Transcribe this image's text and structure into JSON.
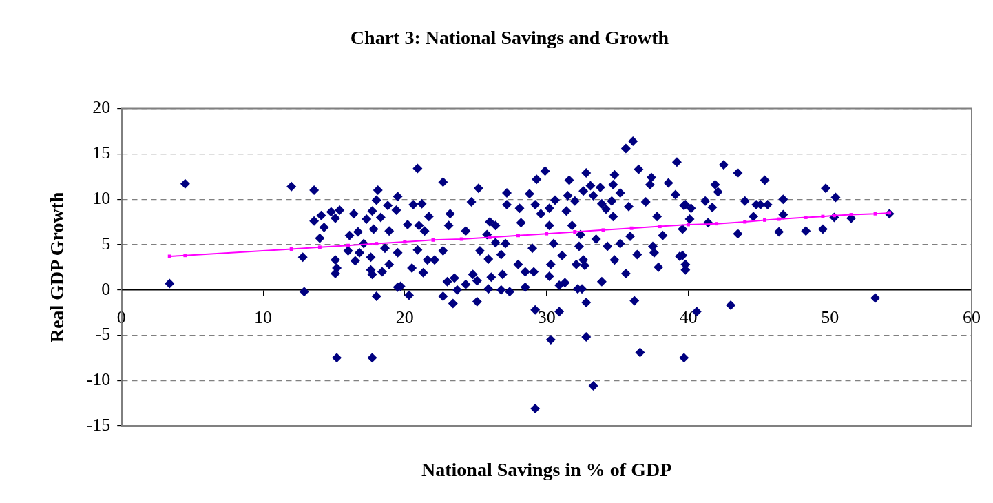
{
  "chart_data": {
    "type": "scatter",
    "title": "Chart 3: National Savings and Growth",
    "xlabel": "National Savings in % of GDP",
    "ylabel": "Real GDP Growth",
    "xlim": [
      0,
      60
    ],
    "xticks": [
      0,
      10,
      20,
      30,
      40,
      50,
      60
    ],
    "ylim": [
      -15,
      20
    ],
    "yticks": [
      -15,
      -10,
      -5,
      0,
      5,
      10,
      15,
      20
    ],
    "grid": "y",
    "legend": false,
    "series": [
      {
        "marker": "diamond",
        "color": "#000080",
        "x": [
          3.4,
          4.5,
          12.0,
          13.6,
          12.8,
          12.9,
          13.6,
          14.1,
          14.3,
          14.0,
          14.8,
          15.4,
          15.1,
          15.1,
          15.2,
          15.1,
          16.0,
          16.1,
          16.4,
          16.7,
          16.5,
          17.3,
          17.8,
          17.7,
          18.0,
          18.1,
          18.3,
          18.8,
          19.4,
          19.5,
          18.9,
          17.6,
          17.7,
          18.4,
          18.9,
          18.0,
          19.5,
          17.6,
          16.8,
          15.2,
          17.7,
          19.5,
          18.6,
          17.1,
          19.7,
          20.3,
          20.9,
          20.6,
          21.2,
          21.7,
          20.2,
          21.0,
          21.4,
          20.9,
          20.5,
          21.3,
          21.6,
          22.1,
          22.7,
          23.2,
          23.1,
          22.7,
          23.0,
          23.5,
          22.7,
          23.4,
          23.7,
          24.3,
          24.3,
          24.7,
          25.2,
          24.8,
          25.1,
          25.1,
          25.3,
          25.8,
          26.0,
          25.9,
          26.1,
          25.9,
          26.4,
          26.4,
          26.8,
          26.9,
          26.8,
          27.4,
          27.2,
          27.2,
          27.1,
          28.0,
          28.1,
          28.2,
          28.5,
          28.5,
          28.8,
          29.1,
          29.0,
          29.2,
          29.3,
          29.9,
          29.2,
          29.2,
          29.6,
          30.2,
          30.2,
          30.6,
          30.3,
          30.5,
          30.2,
          30.9,
          30.9,
          30.3,
          31.3,
          31.1,
          31.4,
          31.5,
          31.6,
          32.0,
          31.8,
          32.1,
          32.3,
          32.4,
          32.2,
          32.5,
          32.6,
          32.7,
          32.6,
          32.8,
          32.8,
          32.8,
          33.1,
          33.3,
          33.3,
          33.5,
          33.8,
          33.9,
          33.9,
          34.2,
          34.3,
          34.6,
          34.8,
          34.7,
          34.7,
          34.8,
          35.2,
          35.2,
          35.6,
          36.1,
          35.6,
          35.8,
          35.9,
          36.2,
          36.4,
          36.5,
          36.6,
          37.0,
          37.3,
          37.4,
          37.5,
          37.6,
          37.9,
          37.8,
          38.2,
          38.6,
          39.1,
          39.2,
          39.4,
          39.7,
          39.7,
          39.6,
          39.8,
          39.8,
          39.8,
          40.2,
          40.1,
          39.6,
          40.6,
          41.2,
          41.7,
          41.4,
          41.9,
          42.1,
          42.5,
          43.0,
          43.5,
          43.5,
          44.0,
          44.6,
          44.8,
          45.1,
          45.4,
          45.6,
          46.4,
          46.7,
          46.7,
          48.3,
          49.5,
          49.7,
          50.3,
          50.4,
          51.5,
          53.2,
          54.2
        ],
        "values": [
          0.7,
          11.7,
          11.4,
          11.0,
          3.6,
          -0.2,
          7.6,
          8.2,
          6.9,
          5.7,
          8.6,
          8.8,
          7.9,
          3.3,
          2.4,
          1.8,
          4.3,
          6.0,
          8.4,
          6.4,
          3.2,
          7.8,
          6.7,
          8.7,
          9.9,
          11.0,
          8.0,
          9.3,
          8.8,
          10.3,
          6.5,
          2.2,
          1.7,
          2.0,
          2.8,
          -0.7,
          0.3,
          3.6,
          4.1,
          -7.5,
          -7.5,
          4.1,
          4.6,
          5.1,
          0.4,
          -0.6,
          13.4,
          9.4,
          9.5,
          8.1,
          7.2,
          7.1,
          6.5,
          4.4,
          2.4,
          1.9,
          3.3,
          3.3,
          11.9,
          8.4,
          7.1,
          4.3,
          0.9,
          1.3,
          -0.7,
          -1.5,
          0.0,
          0.6,
          6.5,
          9.7,
          11.2,
          1.7,
          1.0,
          -1.3,
          4.3,
          6.1,
          7.5,
          3.4,
          1.4,
          0.1,
          7.1,
          5.2,
          3.9,
          1.7,
          0.0,
          -0.2,
          10.7,
          9.4,
          5.1,
          2.8,
          9.0,
          7.4,
          0.3,
          2.0,
          10.6,
          2.0,
          4.6,
          9.4,
          12.2,
          13.1,
          -2.2,
          -13.1,
          8.4,
          9.0,
          7.1,
          9.9,
          2.8,
          5.1,
          1.5,
          0.5,
          -2.4,
          -5.5,
          0.8,
          3.8,
          8.7,
          10.4,
          12.1,
          9.8,
          7.1,
          2.8,
          4.8,
          6.1,
          0.1,
          0.1,
          3.3,
          2.7,
          10.9,
          12.9,
          -1.4,
          -5.2,
          11.5,
          10.4,
          -10.6,
          5.6,
          11.3,
          9.5,
          0.9,
          8.9,
          4.8,
          9.8,
          12.7,
          11.6,
          8.1,
          3.3,
          10.7,
          5.1,
          15.6,
          16.4,
          1.8,
          9.2,
          5.9,
          -1.2,
          3.9,
          13.3,
          -6.9,
          9.7,
          11.6,
          12.4,
          4.8,
          4.1,
          2.5,
          8.1,
          6.0,
          11.8,
          10.5,
          14.1,
          3.7,
          9.3,
          -7.5,
          3.8,
          2.8,
          2.2,
          9.4,
          9.0,
          7.8,
          6.7,
          -2.4,
          9.8,
          9.1,
          7.4,
          11.6,
          10.8,
          13.8,
          -1.7,
          12.9,
          6.2,
          9.8,
          8.1,
          9.4,
          9.4,
          12.1,
          9.4,
          6.4,
          10.0,
          8.3,
          6.5,
          6.7,
          11.2,
          8.0,
          10.2,
          7.9,
          -0.9,
          8.4
        ]
      },
      {
        "type": "line",
        "marker": "square",
        "color": "#ff00ff",
        "x": [
          3.4,
          4.5,
          12.0,
          14.0,
          16.0,
          18.0,
          20.0,
          22.0,
          24.0,
          26.0,
          28.0,
          30.0,
          32.0,
          34.0,
          36.0,
          38.0,
          40.0,
          42.0,
          44.0,
          45.4,
          46.4,
          48.3,
          49.5,
          50.3,
          51.5,
          53.2,
          54.2
        ],
        "values": [
          3.7,
          3.8,
          4.5,
          4.7,
          4.9,
          5.1,
          5.3,
          5.5,
          5.6,
          5.8,
          6.0,
          6.2,
          6.4,
          6.6,
          6.8,
          7.0,
          7.2,
          7.3,
          7.5,
          7.7,
          7.8,
          8.0,
          8.1,
          8.2,
          8.3,
          8.4,
          8.5
        ]
      }
    ]
  }
}
